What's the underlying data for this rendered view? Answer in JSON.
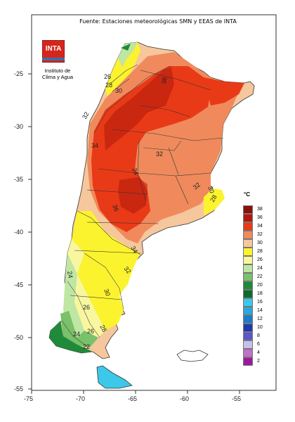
{
  "source_title": "Fuente: Estaciones meteorológicas SMN y EEAS de INTA",
  "logo_text": "INTA",
  "institute": [
    "Instituto de",
    "Clima y Agua"
  ],
  "legend": {
    "unit": "°C",
    "classes": [
      {
        "label": "38",
        "color": "#8b0f0a"
      },
      {
        "label": "36",
        "color": "#b1170d"
      },
      {
        "label": "34",
        "color": "#e93a17"
      },
      {
        "label": "32",
        "color": "#f08a5c"
      },
      {
        "label": "30",
        "color": "#f6c79c"
      },
      {
        "label": "28",
        "color": "#fcf32f"
      },
      {
        "label": "26",
        "color": "#f8f7a0"
      },
      {
        "label": "24",
        "color": "#bfe6a3"
      },
      {
        "label": "22",
        "color": "#79c16a"
      },
      {
        "label": "20",
        "color": "#1e8a3a"
      },
      {
        "label": "18",
        "color": "#0c6b2c"
      },
      {
        "label": "16",
        "color": "#3cc8e8"
      },
      {
        "label": "14",
        "color": "#27a8de"
      },
      {
        "label": "12",
        "color": "#1b7cc8"
      },
      {
        "label": "10",
        "color": "#1d3aa8"
      },
      {
        "label": "8",
        "color": "#5a58c8"
      },
      {
        "label": "6",
        "color": "#c6c0ea"
      },
      {
        "label": "4",
        "color": "#c270c8"
      },
      {
        "label": "2",
        "color": "#9a1a9e"
      }
    ]
  },
  "axes": {
    "x_ticks": [
      "-75",
      "-70",
      "-65",
      "-60",
      "-55"
    ],
    "y_ticks": [
      "-25",
      "-30",
      "-35",
      "-40",
      "-45",
      "-50",
      "-55"
    ]
  },
  "isotherm_labels": [
    "26",
    "28",
    "30",
    "32",
    "36",
    "34",
    "36",
    "32",
    "24",
    "32",
    "30",
    "28",
    "34",
    "32",
    "30",
    "24",
    "26",
    "28",
    "26",
    "24",
    "22"
  ]
}
